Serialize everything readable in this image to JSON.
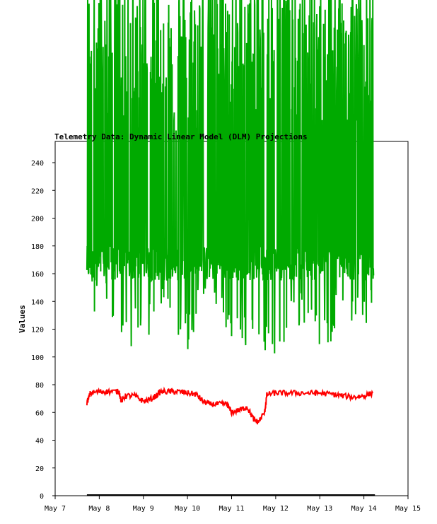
{
  "chart_data": {
    "type": "line",
    "title": "Telemetry Data: Dynamic Linear Model (DLM) Projections",
    "xlabel": "",
    "ylabel": "Values",
    "x_range": [
      "May 7",
      "May 15"
    ],
    "ylim": [
      0,
      255
    ],
    "grid": false,
    "x_ticks": [
      "May 7",
      "May 8",
      "May 9",
      "May 10",
      "May 11",
      "May 12",
      "May 13",
      "May 14",
      "May 15"
    ],
    "y_ticks": [
      0,
      20,
      40,
      60,
      80,
      100,
      120,
      140,
      160,
      180,
      200,
      220,
      240
    ],
    "series": [
      {
        "color": "#00aa00",
        "x": [
          "May 7.7",
          "May 8.0",
          "May 8.5",
          "May 9.0",
          "May 9.5",
          "May 10.0",
          "May 10.5",
          "May 11.0",
          "May 11.5",
          "May 12.0",
          "May 12.5",
          "May 13.0",
          "May 13.5",
          "May 14.0",
          "May 14.2"
        ],
        "low_envelope": [
          118,
          140,
          103,
          110,
          130,
          104,
          150,
          103,
          110,
          100,
          120,
          100,
          120,
          110,
          122
        ],
        "typical_band": [
          155,
          180
        ],
        "high_values": "spikes exceed the top of the axis (>255)"
      },
      {
        "color": "#ff0000",
        "x": [
          7.72,
          7.8,
          8.0,
          8.2,
          8.45,
          8.5,
          8.6,
          8.8,
          9.0,
          9.2,
          9.4,
          9.6,
          9.8,
          10.0,
          10.2,
          10.35,
          10.5,
          10.7,
          10.9,
          11.0,
          11.2,
          11.35,
          11.5,
          11.6,
          11.75,
          11.8,
          12.0,
          12.2,
          12.5,
          12.8,
          13.0,
          13.3,
          13.5,
          13.8,
          14.0,
          14.2
        ],
        "values": [
          67,
          74,
          75,
          75,
          75,
          68,
          72,
          72,
          68,
          70,
          75,
          75,
          75,
          74,
          73,
          68,
          66,
          66,
          66,
          60,
          62,
          64,
          55,
          53,
          60,
          73,
          74,
          74,
          74,
          74,
          74,
          73,
          72,
          71,
          72,
          74
        ]
      },
      {
        "color": "#000000",
        "x": [
          7.72,
          14.25
        ],
        "values": [
          0.5,
          0.5
        ]
      }
    ]
  }
}
